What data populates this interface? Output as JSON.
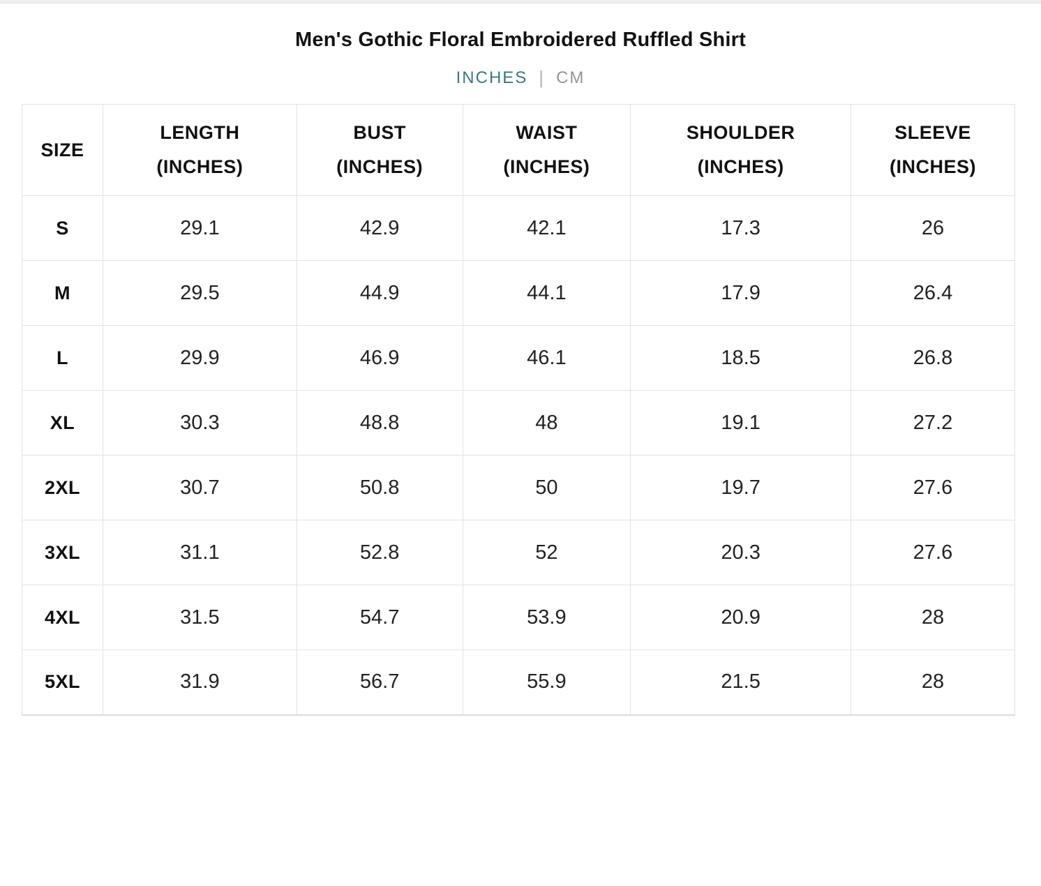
{
  "header": {
    "title": "Men's Gothic Floral Embroidered Ruffled Shirt"
  },
  "unit_toggle": {
    "separator": "|",
    "options": [
      {
        "id": "inches",
        "label": "INCHES",
        "active": true
      },
      {
        "id": "cm",
        "label": "CM",
        "active": false
      }
    ]
  },
  "colors": {
    "active-unit": "#387a7b",
    "inactive-unit": "#939598",
    "separator": "#b3b3b3",
    "table-border": "#e2e2e2"
  },
  "chart_data": {
    "type": "table",
    "columns": [
      {
        "label": "SIZE",
        "sub": ""
      },
      {
        "label": "LENGTH",
        "sub": "(INCHES)"
      },
      {
        "label": "BUST",
        "sub": "(INCHES)"
      },
      {
        "label": "WAIST",
        "sub": "(INCHES)"
      },
      {
        "label": "SHOULDER",
        "sub": "(INCHES)"
      },
      {
        "label": "SLEEVE",
        "sub": "(INCHES)"
      }
    ],
    "rows": [
      {
        "size": "S",
        "values": [
          "29.1",
          "42.9",
          "42.1",
          "17.3",
          "26"
        ]
      },
      {
        "size": "M",
        "values": [
          "29.5",
          "44.9",
          "44.1",
          "17.9",
          "26.4"
        ]
      },
      {
        "size": "L",
        "values": [
          "29.9",
          "46.9",
          "46.1",
          "18.5",
          "26.8"
        ]
      },
      {
        "size": "XL",
        "values": [
          "30.3",
          "48.8",
          "48",
          "19.1",
          "27.2"
        ]
      },
      {
        "size": "2XL",
        "values": [
          "30.7",
          "50.8",
          "50",
          "19.7",
          "27.6"
        ]
      },
      {
        "size": "3XL",
        "values": [
          "31.1",
          "52.8",
          "52",
          "20.3",
          "27.6"
        ]
      },
      {
        "size": "4XL",
        "values": [
          "31.5",
          "54.7",
          "53.9",
          "20.9",
          "28"
        ]
      },
      {
        "size": "5XL",
        "values": [
          "31.9",
          "56.7",
          "55.9",
          "21.5",
          "28"
        ]
      }
    ]
  }
}
